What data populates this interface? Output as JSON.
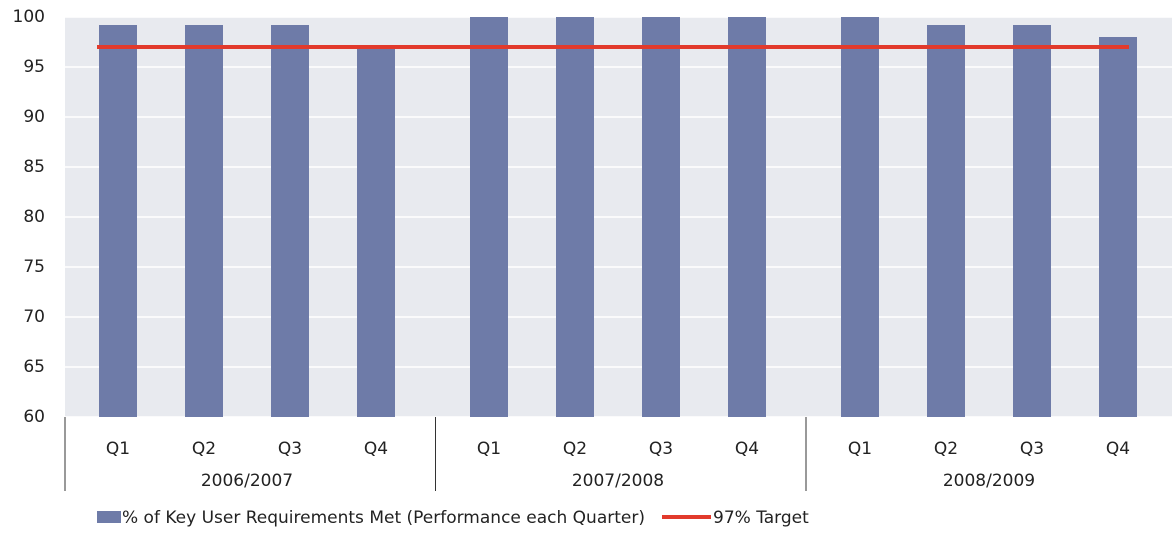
{
  "chart_data": {
    "type": "bar",
    "categories": [
      "Q1",
      "Q2",
      "Q3",
      "Q4",
      "Q1",
      "Q2",
      "Q3",
      "Q4",
      "Q1",
      "Q2",
      "Q3",
      "Q4"
    ],
    "groups": [
      "2006/2007",
      "2007/2008",
      "2008/2009"
    ],
    "series": [
      {
        "name": "% of Key User Requirements Met (Performance each Quarter)",
        "color": "#6e7ba8",
        "type": "bar",
        "values": [
          99.2,
          99.2,
          99.2,
          97,
          100,
          100,
          100,
          100,
          100,
          99.2,
          99.2,
          98
        ]
      },
      {
        "name": "97% Target",
        "color": "#e23a2c",
        "type": "line",
        "values": [
          97,
          97,
          97,
          97,
          97,
          97,
          97,
          97,
          97,
          97,
          97,
          97
        ]
      }
    ],
    "ylim": [
      60,
      100
    ],
    "yticks": [
      60,
      65,
      70,
      75,
      80,
      85,
      90,
      95,
      100
    ],
    "grid": true
  }
}
